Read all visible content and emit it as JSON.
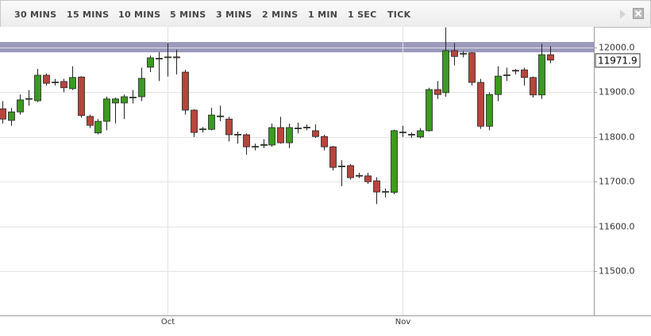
{
  "toolbar": {
    "buttons": [
      "30 MINS",
      "15 MINS",
      "10 MINS",
      "5 MINS",
      "3 MINS",
      "2 MINS",
      "1 MIN",
      "1 SEC",
      "TICK"
    ]
  },
  "chart_data": {
    "type": "candlestick",
    "categories": [
      null,
      null,
      null,
      null,
      null,
      null,
      null,
      null,
      null,
      null,
      null,
      null,
      null,
      null,
      null,
      null,
      null,
      null,
      null,
      "Oct",
      null,
      null,
      null,
      null,
      null,
      null,
      null,
      null,
      null,
      null,
      null,
      null,
      null,
      null,
      null,
      null,
      null,
      null,
      null,
      null,
      null,
      null,
      null,
      null,
      null,
      null,
      "Nov",
      null,
      null,
      null,
      null,
      null,
      null,
      null,
      null,
      null,
      null,
      null,
      null,
      null,
      null,
      null,
      null,
      null
    ],
    "open": [
      11863,
      11837,
      11856,
      11885,
      11881,
      11938,
      11922,
      11924,
      11908,
      11934,
      11846,
      11809,
      11835,
      11876,
      11876,
      11888,
      11890,
      11956,
      11975,
      11978,
      11979,
      11945,
      11860,
      11817,
      11817,
      11846,
      11840,
      11805,
      11805,
      11778,
      11782,
      11782,
      11821,
      11787,
      11819,
      11821,
      11814,
      11801,
      11778,
      11734,
      11736,
      11713,
      11713,
      11702,
      11677,
      11676,
      11810,
      11806,
      11800,
      11814,
      11906,
      11899,
      11993,
      11986,
      11988,
      11922,
      11824,
      11895,
      11938,
      11949,
      11950,
      11933,
      11894,
      11984
    ],
    "high": [
      11880,
      11865,
      11895,
      11905,
      11952,
      11942,
      11930,
      11930,
      11958,
      11936,
      11850,
      11840,
      11890,
      11888,
      11895,
      11905,
      11955,
      11982,
      11990,
      12010,
      11995,
      11950,
      11862,
      11822,
      11865,
      11870,
      11845,
      11812,
      11808,
      11785,
      11795,
      11830,
      11845,
      11830,
      11832,
      11828,
      11828,
      11805,
      11780,
      11748,
      11740,
      11720,
      11720,
      11710,
      11685,
      11816,
      11825,
      11810,
      11820,
      11910,
      11925,
      12045,
      12010,
      11992,
      11990,
      11930,
      11900,
      11958,
      11955,
      11952,
      11955,
      11935,
      12008,
      12003
    ],
    "low": [
      11830,
      11825,
      11850,
      11870,
      11878,
      11915,
      11915,
      11900,
      11905,
      11843,
      11820,
      11806,
      11815,
      11830,
      11840,
      11875,
      11880,
      11945,
      11925,
      11935,
      11940,
      11850,
      11800,
      11810,
      11815,
      11835,
      11790,
      11785,
      11760,
      11770,
      11775,
      11778,
      11785,
      11775,
      11808,
      11815,
      11798,
      11770,
      11725,
      11690,
      11705,
      11708,
      11695,
      11650,
      11665,
      11672,
      11800,
      11798,
      11797,
      11812,
      11885,
      11890,
      11960,
      11978,
      11915,
      11818,
      11815,
      11880,
      11925,
      11940,
      11915,
      11888,
      11885,
      11965
    ],
    "close": [
      11840,
      11856,
      11883,
      11886,
      11938,
      11920,
      11923,
      11910,
      11933,
      11848,
      11826,
      11835,
      11885,
      11885,
      11890,
      11889,
      11931,
      11977,
      11976,
      11979,
      11977,
      11860,
      11810,
      11818,
      11849,
      11847,
      11805,
      11806,
      11778,
      11779,
      11783,
      11821,
      11787,
      11821,
      11820,
      11822,
      11801,
      11778,
      11732,
      11735,
      11709,
      11714,
      11700,
      11677,
      11678,
      11814,
      11811,
      11805,
      11814,
      11906,
      11895,
      11993,
      11980,
      11987,
      11922,
      11824,
      11895,
      11936,
      11939,
      11948,
      11933,
      11894,
      11984,
      11971.9
    ],
    "up_color": "#3c9a1f",
    "down_color": "#b6463b",
    "last_price": 11971.9,
    "ylim": [
      11401,
      12046
    ],
    "yticks": [
      {
        "value": 11500,
        "label": "11500.0"
      },
      {
        "value": 11600,
        "label": "11600.0"
      },
      {
        "value": 11700,
        "label": "11700.0"
      },
      {
        "value": 11800,
        "label": "11800.0"
      },
      {
        "value": 11900,
        "label": "11900.0"
      },
      {
        "value": 12000,
        "label": "12000.0"
      }
    ],
    "grid": true
  }
}
